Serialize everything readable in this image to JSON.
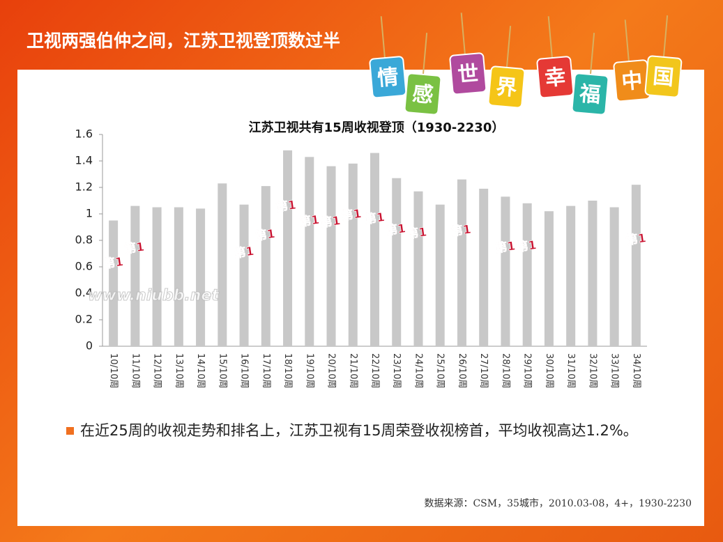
{
  "slide_title": "卫视两强伯仲之间，江苏卫视登顶数过半",
  "banner": [
    "情",
    "感",
    "世",
    "界",
    "幸",
    "福",
    "中",
    "国"
  ],
  "chart_data": {
    "type": "bar",
    "title": "江苏卫视共有15周收视登顶（1930-2230）",
    "categories": [
      "10/10周",
      "11/10周",
      "12/10周",
      "13/10周",
      "14/10周",
      "15/10周",
      "16/10周",
      "17/10周",
      "18/10周",
      "19/10周",
      "20/10周",
      "21/10周",
      "22/10周",
      "23/10周",
      "24/10周",
      "25/10周",
      "26/10周",
      "27/10周",
      "28/10周",
      "29/10周",
      "30/10周",
      "31/10周",
      "32/10周",
      "33/10周",
      "34/10周"
    ],
    "values": [
      0.95,
      1.06,
      1.05,
      1.05,
      1.04,
      1.23,
      1.07,
      1.21,
      1.48,
      1.43,
      1.36,
      1.38,
      1.46,
      1.27,
      1.17,
      1.07,
      1.26,
      1.19,
      1.13,
      1.08,
      1.02,
      1.06,
      1.1,
      1.05,
      1.22
    ],
    "rank_labels": [
      "第1",
      "第1",
      null,
      null,
      null,
      null,
      "第1",
      "第1",
      "第1",
      "第1",
      "第1",
      "第1",
      "第1",
      "第1",
      "第1",
      null,
      "第1",
      null,
      "第1",
      "第1",
      null,
      null,
      null,
      null,
      "第1"
    ],
    "color": "#c8c8c8",
    "ylim": [
      0,
      1.6
    ],
    "yticks": [
      0,
      0.2,
      0.4,
      0.6,
      0.8,
      1,
      1.2,
      1.4,
      1.6
    ],
    "watermark": "www.niubb.net"
  },
  "bullet": "在近25周的收视走势和排名上，江苏卫视有15周荣登收视榜首，平均收视高达1.2%。",
  "source": "数据来源：CSM，35城市，2010.03-08，4+，1930-2230"
}
